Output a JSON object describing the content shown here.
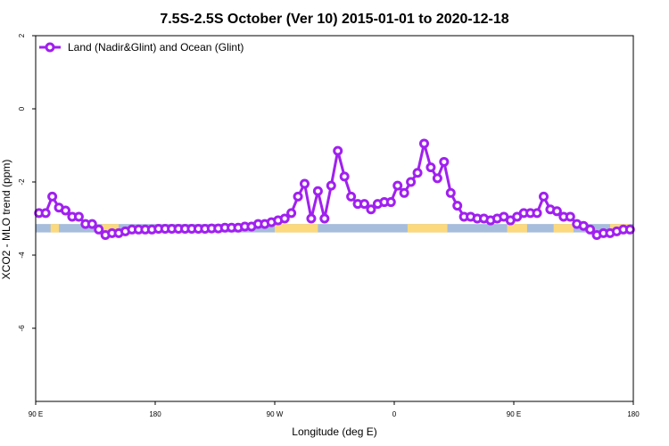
{
  "chart_data": {
    "type": "line",
    "title": "7.5S-2.5S October (Ver 10)   2015-01-01 to 2020-12-18",
    "xlabel": "Longitude (deg E)",
    "ylabel": "XCO2 - MLO trend (ppm)",
    "xlim": [
      90,
      450
    ],
    "ylim": [
      -8,
      2
    ],
    "x_ticks": [
      {
        "value": 90,
        "label": "90 E"
      },
      {
        "value": 162,
        "label": "180"
      },
      {
        "value": 234,
        "label": "90 W"
      },
      {
        "value": 306,
        "label": "0"
      },
      {
        "value": 378,
        "label": "90 E"
      },
      {
        "value": 450,
        "label": "180"
      }
    ],
    "y_ticks": [
      {
        "value": 2,
        "label": "2"
      },
      {
        "value": 0,
        "label": "0"
      },
      {
        "value": -2,
        "label": "-2"
      },
      {
        "value": -4,
        "label": "-4"
      },
      {
        "value": -6,
        "label": "-6"
      }
    ],
    "grid": false,
    "legend": {
      "position": "top-left"
    },
    "series": [
      {
        "name": "Land (Nadir&Glint) and Ocean (Glint)",
        "color": "#a020f0",
        "x": [
          92,
          96,
          100,
          104,
          108,
          112,
          116,
          120,
          124,
          128,
          132,
          136,
          140,
          144,
          148,
          152,
          156,
          160,
          164,
          168,
          172,
          176,
          180,
          184,
          188,
          192,
          196,
          200,
          204,
          208,
          212,
          216,
          220,
          224,
          228,
          232,
          236,
          240,
          244,
          248,
          252,
          256,
          260,
          264,
          268,
          272,
          276,
          280,
          284,
          288,
          292,
          296,
          300,
          304,
          308,
          312,
          316,
          320,
          324,
          328,
          332,
          336,
          340,
          344,
          348,
          352,
          356,
          360,
          364,
          368,
          372,
          376,
          380,
          384,
          388,
          392,
          396,
          400,
          404,
          408,
          412,
          416,
          420,
          424,
          428,
          432,
          436,
          440,
          444,
          448
        ],
        "y": [
          -2.85,
          -2.85,
          -2.4,
          -2.7,
          -2.78,
          -2.95,
          -2.95,
          -3.15,
          -3.15,
          -3.3,
          -3.45,
          -3.4,
          -3.4,
          -3.35,
          -3.3,
          -3.3,
          -3.3,
          -3.3,
          -3.28,
          -3.28,
          -3.28,
          -3.28,
          -3.28,
          -3.28,
          -3.28,
          -3.28,
          -3.27,
          -3.27,
          -3.25,
          -3.25,
          -3.25,
          -3.22,
          -3.22,
          -3.15,
          -3.15,
          -3.1,
          -3.05,
          -3.0,
          -2.85,
          -2.4,
          -2.05,
          -3.0,
          -2.25,
          -3.0,
          -2.1,
          -1.15,
          -1.85,
          -2.4,
          -2.6,
          -2.6,
          -2.75,
          -2.6,
          -2.55,
          -2.55,
          -2.1,
          -2.3,
          -2.0,
          -1.75,
          -0.95,
          -1.6,
          -1.9,
          -1.45,
          -2.3,
          -2.65,
          -2.95,
          -2.95,
          -3.0,
          -3.0,
          -3.05,
          -3.0,
          -2.95,
          -3.05,
          -2.95,
          -2.85,
          -2.85,
          -2.85,
          -2.4,
          -2.75,
          -2.8,
          -2.95,
          -2.95,
          -3.15,
          -3.2,
          -3.3,
          -3.45,
          -3.4,
          -3.4,
          -3.35,
          -3.3,
          -3.3
        ]
      }
    ],
    "surface_strip": {
      "y_range": [
        -3.38,
        -3.15
      ],
      "ocean_color": "#a6bddb",
      "land_color": "#fcd97c",
      "land_segments": [
        [
          99,
          104
        ],
        [
          130,
          140
        ],
        [
          234,
          260
        ],
        [
          314,
          338
        ],
        [
          374,
          386
        ],
        [
          402,
          414
        ],
        [
          436,
          448
        ]
      ]
    }
  }
}
